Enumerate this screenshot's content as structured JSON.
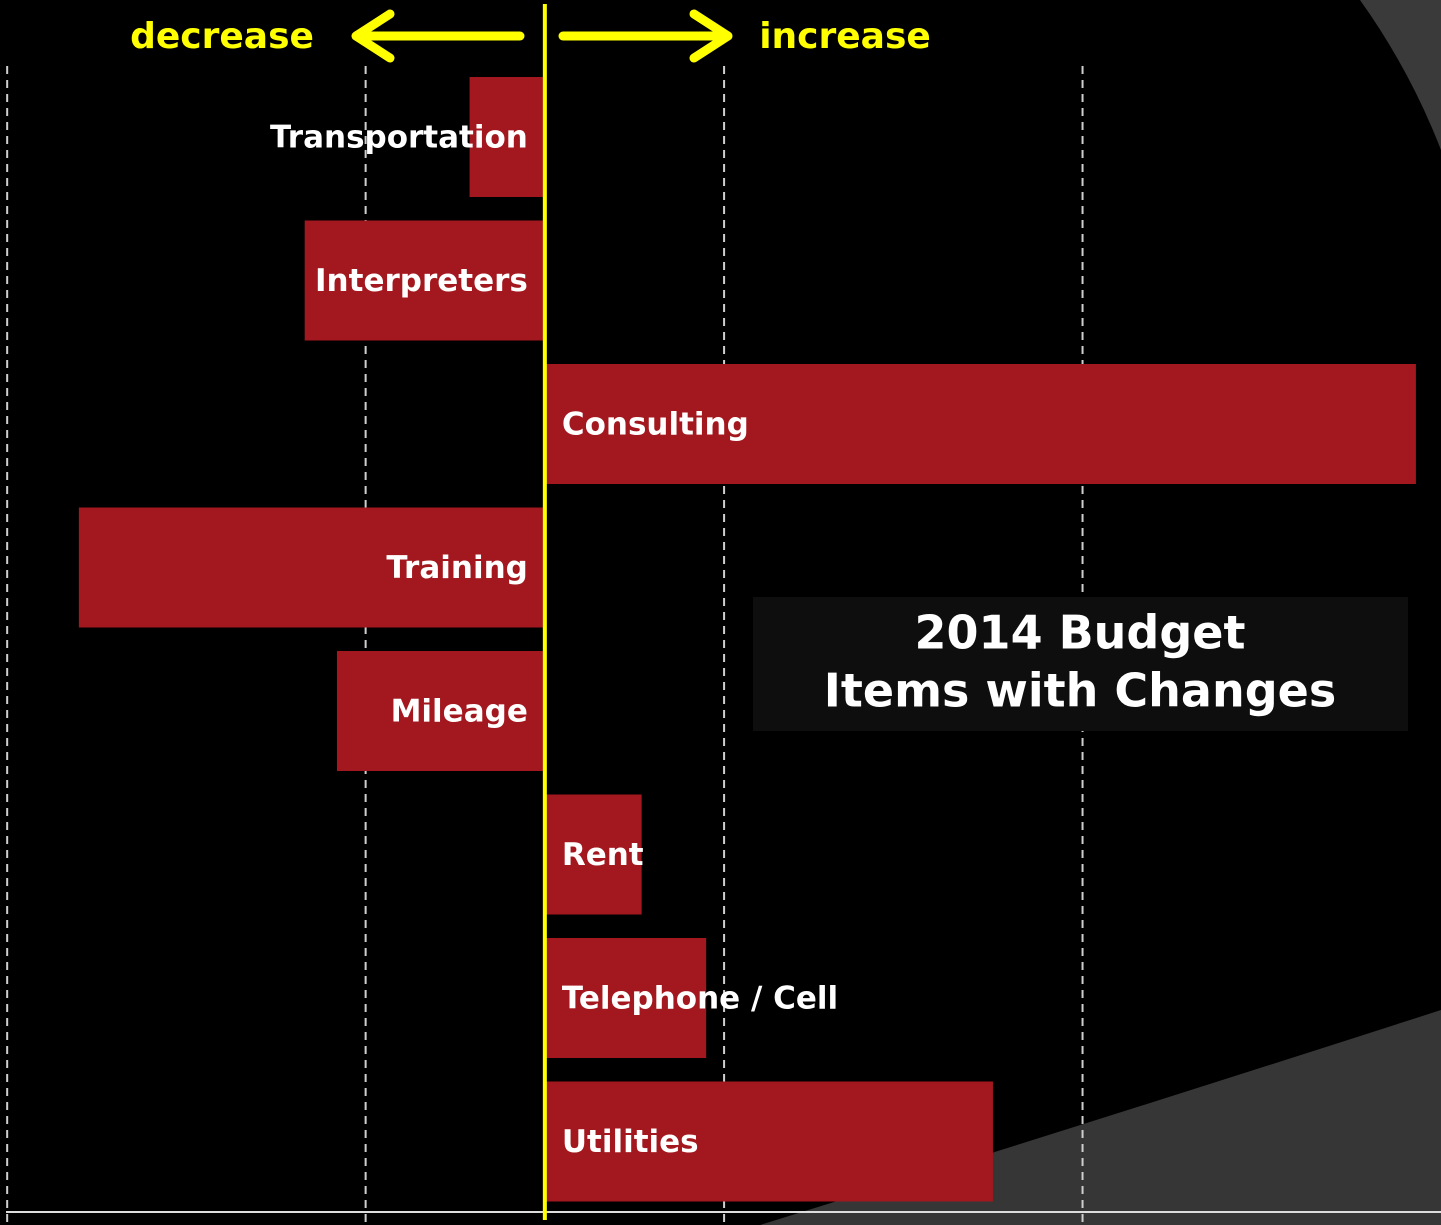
{
  "chart_data": {
    "type": "bar",
    "orientation": "horizontal",
    "title": [
      "2014 Budget",
      "Items with Changes"
    ],
    "left_label": "decrease",
    "right_label": "increase",
    "categories": [
      "Transportation",
      "Interpreters",
      "Consulting",
      "Training",
      "Mileage",
      "Rent",
      "Telephone / Cell",
      "Utilities"
    ],
    "values": [
      -0.21,
      -0.67,
      2.43,
      -1.3,
      -0.58,
      0.27,
      0.45,
      1.25
    ],
    "color": "#a3181f",
    "xlim": [
      -1.52,
      2.5
    ],
    "xticks": [
      -1.5,
      -0.5,
      0.5,
      1.5
    ],
    "grid": true
  }
}
